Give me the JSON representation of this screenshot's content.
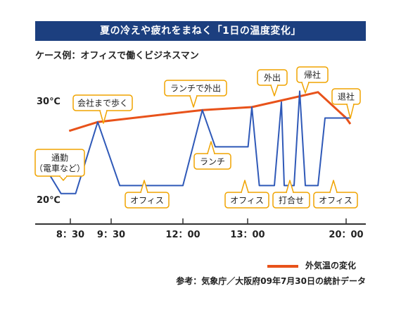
{
  "title": "夏の冷えや疲れをまねく「1日の温度変化」",
  "subtitle": "ケース例：オフィスで働くビジネスマン",
  "legend": {
    "outdoor_label": "外気温の変化"
  },
  "source": "参考：気象庁／大阪府09年7月30日の統計データ",
  "colors": {
    "title_bg": "#1c3f7f",
    "indoor_line": "#2f59b8",
    "outdoor_line": "#e8521a",
    "callout_border": "#f0a400"
  },
  "chart_data": {
    "type": "line",
    "xlabel": "",
    "ylabel": "",
    "x_ticks": [
      "8：30",
      "9：30",
      "12：00",
      "13：00",
      "20：00"
    ],
    "y_ticks": [
      "30℃",
      "20℃"
    ],
    "series": [
      {
        "name": "外気温の変化",
        "points": [
          [
            8.47,
            27.6
          ],
          [
            9.17,
            28.5
          ],
          [
            12.3,
            29.7
          ],
          [
            13.3,
            30.0
          ],
          [
            18.0,
            31.5
          ],
          [
            20.0,
            28.9
          ],
          [
            20.3,
            28.3
          ]
        ]
      },
      {
        "points": [
          [
            7.93,
            23.6
          ],
          [
            8.27,
            21.3
          ],
          [
            8.63,
            21.3
          ],
          [
            9.17,
            28.5
          ],
          [
            9.8,
            22.1
          ],
          [
            12.0,
            22.1
          ],
          [
            12.3,
            29.7
          ],
          [
            12.5,
            26.0
          ],
          [
            13.03,
            26.0
          ],
          [
            13.3,
            30.0
          ],
          [
            13.83,
            22.1
          ],
          [
            14.9,
            22.1
          ],
          [
            15.4,
            30.5
          ],
          [
            15.6,
            22.1
          ],
          [
            16.3,
            22.1
          ],
          [
            16.7,
            31.6
          ],
          [
            17.1,
            22.1
          ],
          [
            18.0,
            22.1
          ],
          [
            18.5,
            28.9
          ],
          [
            20.3,
            28.9
          ]
        ]
      }
    ],
    "annotations": [
      {
        "label": "会社まで歩く"
      },
      {
        "label": "ランチで外出"
      },
      {
        "label": "外出"
      },
      {
        "label": "帰社"
      },
      {
        "label": "退社"
      },
      {
        "label": "通勤\n（電車など）"
      },
      {
        "label": "ランチ"
      },
      {
        "label": "オフィス"
      },
      {
        "label": "オフィス"
      },
      {
        "label": "打合せ"
      },
      {
        "label": "オフィス"
      }
    ]
  }
}
